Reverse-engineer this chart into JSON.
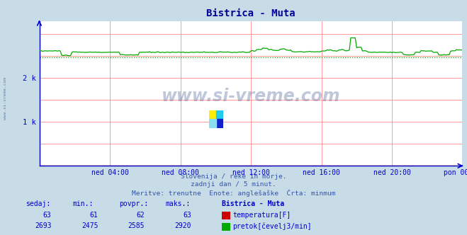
{
  "title": "Bistrica - Muta",
  "bg_color": "#c8dce8",
  "plot_bg_color": "#ffffff",
  "grid_color": "#ff8888",
  "x_labels": [
    "ned 04:00",
    "ned 08:00",
    "ned 12:00",
    "ned 16:00",
    "ned 20:00",
    "pon 00:00"
  ],
  "y_labels": [
    "1 k",
    "2 k"
  ],
  "y_ticks": [
    1000,
    2000
  ],
  "y_min": 0,
  "y_max": 3300,
  "subtitle_lines": [
    "Slovenija / reke in morje.",
    "zadnji dan / 5 minut.",
    "Meritve: trenutne  Enote: anglešaške  Črta: minmum"
  ],
  "table_headers": [
    "sedaj:",
    "min.:",
    "povpr.:",
    "maks.:",
    "Bistrica - Muta"
  ],
  "table_row1_vals": [
    "63",
    "61",
    "62",
    "63"
  ],
  "table_row1_label": "temperatura[F]",
  "table_row2_vals": [
    "2693",
    "2475",
    "2585",
    "2920"
  ],
  "table_row2_label": "pretok[čevelj3/min]",
  "temp_color": "#cc0000",
  "flow_color": "#00aa00",
  "line_color_flow": "#00aa00",
  "dotted_line_color": "#00aa00",
  "axis_color": "#0000cc",
  "title_color": "#000099",
  "text_color": "#3355aa",
  "watermark": "www.si-vreme.com",
  "flow_min": 2475,
  "flow_max": 2920,
  "flow_avg": 2585,
  "n_points": 289
}
